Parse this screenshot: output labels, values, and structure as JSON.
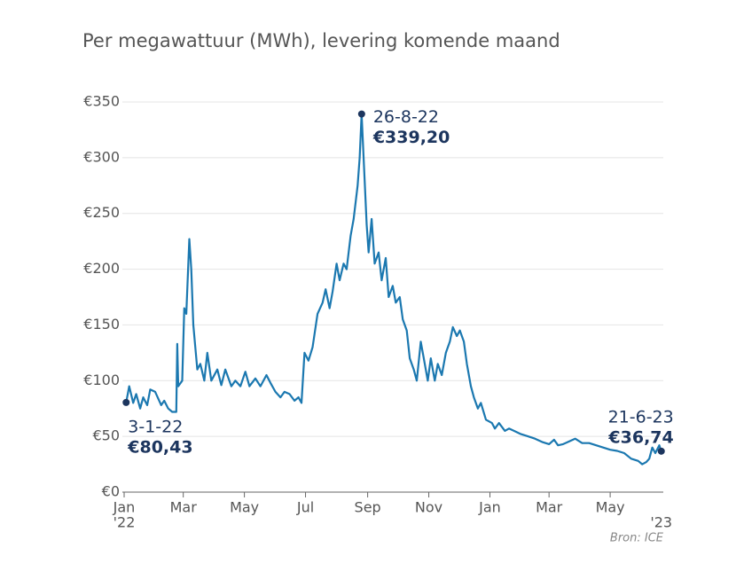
{
  "chart_data": {
    "type": "line",
    "title": "Per megawattuur (MWh), levering komende maand",
    "source": "Bron: ICE",
    "color": "#1b78b0",
    "grid": true,
    "x": [
      "2022-01-03",
      "2022-01-06",
      "2022-01-10",
      "2022-01-13",
      "2022-01-17",
      "2022-01-20",
      "2022-01-24",
      "2022-01-27",
      "2022-02-01",
      "2022-02-07",
      "2022-02-10",
      "2022-02-14",
      "2022-02-18",
      "2022-02-22",
      "2022-02-23",
      "2022-02-24",
      "2022-02-28",
      "2022-03-02",
      "2022-03-04",
      "2022-03-07",
      "2022-03-09",
      "2022-03-11",
      "2022-03-15",
      "2022-03-18",
      "2022-03-22",
      "2022-03-25",
      "2022-03-29",
      "2022-04-04",
      "2022-04-08",
      "2022-04-12",
      "2022-04-18",
      "2022-04-22",
      "2022-04-27",
      "2022-05-02",
      "2022-05-06",
      "2022-05-12",
      "2022-05-17",
      "2022-05-23",
      "2022-05-27",
      "2022-06-01",
      "2022-06-06",
      "2022-06-10",
      "2022-06-15",
      "2022-06-20",
      "2022-06-24",
      "2022-06-27",
      "2022-06-30",
      "2022-07-04",
      "2022-07-08",
      "2022-07-13",
      "2022-07-18",
      "2022-07-21",
      "2022-07-25",
      "2022-07-28",
      "2022-08-01",
      "2022-08-04",
      "2022-08-08",
      "2022-08-11",
      "2022-08-15",
      "2022-08-18",
      "2022-08-22",
      "2022-08-24",
      "2022-08-26",
      "2022-08-29",
      "2022-08-31",
      "2022-09-02",
      "2022-09-05",
      "2022-09-08",
      "2022-09-12",
      "2022-09-15",
      "2022-09-19",
      "2022-09-22",
      "2022-09-26",
      "2022-09-29",
      "2022-10-03",
      "2022-10-06",
      "2022-10-10",
      "2022-10-13",
      "2022-10-17",
      "2022-10-20",
      "2022-10-24",
      "2022-10-27",
      "2022-10-31",
      "2022-11-03",
      "2022-11-07",
      "2022-11-10",
      "2022-11-14",
      "2022-11-18",
      "2022-11-22",
      "2022-11-25",
      "2022-11-29",
      "2022-12-02",
      "2022-12-06",
      "2022-12-09",
      "2022-12-13",
      "2022-12-16",
      "2022-12-20",
      "2022-12-23",
      "2022-12-28",
      "2023-01-03",
      "2023-01-06",
      "2023-01-10",
      "2023-01-16",
      "2023-01-20",
      "2023-01-25",
      "2023-02-01",
      "2023-02-08",
      "2023-02-15",
      "2023-02-22",
      "2023-03-01",
      "2023-03-06",
      "2023-03-10",
      "2023-03-15",
      "2023-03-20",
      "2023-03-27",
      "2023-04-03",
      "2023-04-10",
      "2023-04-17",
      "2023-04-24",
      "2023-05-01",
      "2023-05-08",
      "2023-05-15",
      "2023-05-22",
      "2023-05-29",
      "2023-06-02",
      "2023-06-06",
      "2023-06-09",
      "2023-06-12",
      "2023-06-15",
      "2023-06-19",
      "2023-06-21"
    ],
    "values": [
      80.43,
      95,
      80,
      88,
      75,
      85,
      78,
      92,
      90,
      78,
      82,
      75,
      72,
      72,
      133,
      95,
      100,
      165,
      160,
      227,
      200,
      150,
      110,
      115,
      100,
      125,
      100,
      110,
      96,
      110,
      95,
      100,
      95,
      108,
      95,
      102,
      95,
      105,
      98,
      90,
      85,
      90,
      88,
      82,
      85,
      80,
      125,
      118,
      130,
      160,
      170,
      182,
      165,
      180,
      205,
      190,
      205,
      200,
      230,
      245,
      275,
      300,
      339.2,
      280,
      240,
      215,
      245,
      205,
      215,
      190,
      210,
      175,
      185,
      170,
      175,
      155,
      145,
      120,
      110,
      100,
      135,
      120,
      100,
      120,
      100,
      115,
      105,
      125,
      135,
      148,
      140,
      145,
      135,
      115,
      95,
      85,
      75,
      80,
      65,
      62,
      57,
      62,
      55,
      57,
      55,
      52,
      50,
      48,
      45,
      43,
      47,
      42,
      43,
      45,
      48,
      44,
      44,
      42,
      40,
      38,
      37,
      35,
      30,
      28,
      25,
      27,
      30,
      40,
      35,
      42,
      36.74
    ],
    "xlim": [
      "2022-01-01",
      "2023-06-23"
    ],
    "xticks": [
      {
        "value": "2022-01-01",
        "label": "Jan"
      },
      {
        "value": "2022-03-01",
        "label": "Mar"
      },
      {
        "value": "2022-05-01",
        "label": "May"
      },
      {
        "value": "2022-07-01",
        "label": "Jul"
      },
      {
        "value": "2022-09-01",
        "label": "Sep"
      },
      {
        "value": "2022-11-01",
        "label": "Nov"
      },
      {
        "value": "2023-01-01",
        "label": "Jan"
      },
      {
        "value": "2023-03-01",
        "label": "Mar"
      },
      {
        "value": "2023-05-01",
        "label": "May"
      }
    ],
    "year_labels": [
      {
        "value": "2022-01-01",
        "label": "'22"
      },
      {
        "value": "2023-06-21",
        "label": "'23"
      }
    ],
    "ylim": [
      0,
      350
    ],
    "yticks": [
      {
        "value": 0,
        "label": "€0"
      },
      {
        "value": 50,
        "label": "€50"
      },
      {
        "value": 100,
        "label": "€100"
      },
      {
        "value": 150,
        "label": "€150"
      },
      {
        "value": 200,
        "label": "€200"
      },
      {
        "value": 250,
        "label": "€250"
      },
      {
        "value": 300,
        "label": "€300"
      },
      {
        "value": 350,
        "label": "€350"
      }
    ],
    "annotations": [
      {
        "x": "2022-01-03",
        "label": "3-1-22",
        "value": 80.43,
        "value_label": "€80,43",
        "side": "below-right"
      },
      {
        "x": "2022-08-26",
        "label": "26-8-22",
        "value": 339.2,
        "value_label": "€339,20",
        "side": "right"
      },
      {
        "x": "2023-06-21",
        "label": "21-6-23",
        "value": 36.74,
        "value_label": "€36,74",
        "side": "above-left"
      }
    ]
  }
}
